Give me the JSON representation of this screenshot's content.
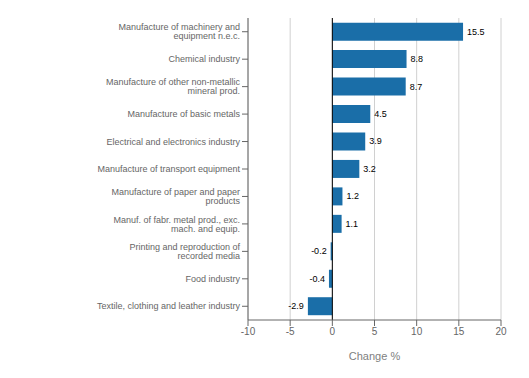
{
  "chart_data": {
    "type": "bar",
    "orientation": "horizontal",
    "categories": [
      "Textile, clothing and leather industry",
      "Food industry",
      "Printing and reproduction of recorded media",
      "Manuf. of fabr. metal prod., exc. mach. and equip.",
      "Manufacture of paper and paper products",
      "Manufacture of transport equipment",
      "Electrical and electronics industry",
      "Manufacture of basic metals",
      "Manufacture of other non-metallic mineral prod.",
      "Chemical industry",
      "Manufacture of machinery and equipment n.e.c."
    ],
    "values": [
      -2.9,
      -0.4,
      -0.2,
      1.1,
      1.2,
      3.2,
      3.9,
      4.5,
      8.7,
      8.8,
      15.5
    ],
    "color": "#1a6ea8",
    "xlabel": "Change %",
    "xlim": [
      -10,
      20
    ],
    "xticks": [
      -10,
      -5,
      0,
      5,
      10,
      15,
      20
    ],
    "grid": true,
    "data_labels": true
  }
}
